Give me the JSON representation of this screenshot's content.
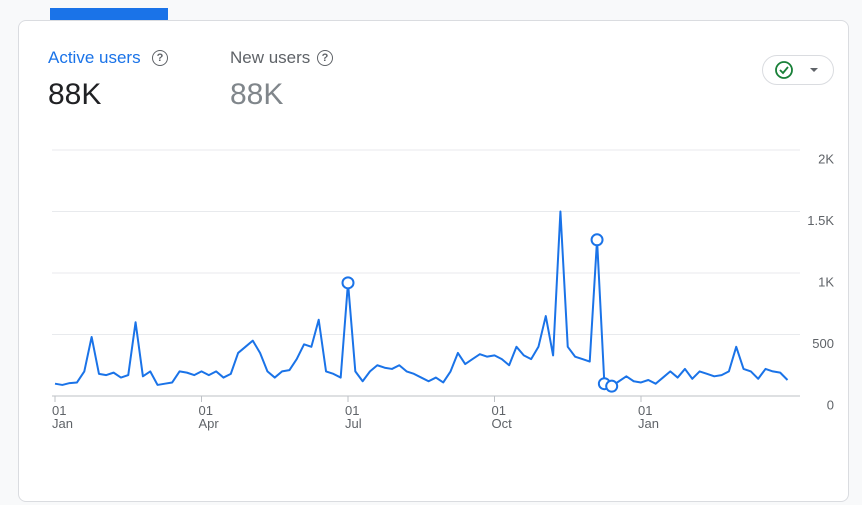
{
  "metrics": [
    {
      "label": "Active users",
      "value": "88K"
    },
    {
      "label": "New users",
      "value": "88K"
    }
  ],
  "chart_data": {
    "type": "line",
    "x": [
      "01 Jan",
      null,
      null,
      null,
      null,
      null,
      null,
      null,
      null,
      null,
      null,
      null,
      null,
      null,
      null,
      null,
      null,
      null,
      null,
      null,
      "01 Apr",
      null,
      null,
      null,
      null,
      null,
      null,
      null,
      null,
      null,
      null,
      null,
      null,
      null,
      null,
      null,
      null,
      null,
      null,
      null,
      "01 Jul",
      null,
      null,
      null,
      null,
      null,
      null,
      null,
      null,
      null,
      null,
      null,
      null,
      null,
      null,
      null,
      null,
      null,
      null,
      null,
      "01 Oct",
      null,
      null,
      null,
      null,
      null,
      null,
      null,
      null,
      null,
      null,
      null,
      null,
      null,
      null,
      null,
      null,
      null,
      null,
      null,
      "01 Jan",
      null,
      null,
      null,
      null,
      null,
      null,
      null,
      null,
      null,
      null,
      null,
      null,
      null,
      null,
      null,
      null,
      null,
      null,
      null,
      null
    ],
    "series": [
      {
        "name": "Active users",
        "color": "#1a73e8",
        "values": [
          100,
          90,
          105,
          110,
          200,
          480,
          180,
          170,
          190,
          150,
          170,
          600,
          160,
          200,
          90,
          100,
          110,
          200,
          190,
          170,
          200,
          170,
          200,
          150,
          180,
          350,
          400,
          450,
          350,
          200,
          150,
          200,
          210,
          300,
          420,
          400,
          620,
          200,
          180,
          150,
          920,
          200,
          120,
          200,
          250,
          230,
          220,
          250,
          200,
          180,
          150,
          120,
          150,
          110,
          200,
          350,
          260,
          300,
          340,
          320,
          330,
          300,
          250,
          400,
          330,
          300,
          400,
          650,
          330,
          1500,
          400,
          320,
          300,
          280,
          1270,
          100,
          80,
          120,
          160,
          120,
          110,
          130,
          100,
          150,
          200,
          150,
          220,
          140,
          200,
          180,
          160,
          170,
          200,
          400,
          220,
          200,
          140,
          220,
          200,
          190,
          130
        ],
        "anomalies": [
          null,
          null,
          null,
          null,
          null,
          null,
          null,
          null,
          null,
          null,
          null,
          null,
          null,
          null,
          null,
          null,
          null,
          null,
          null,
          null,
          null,
          null,
          null,
          null,
          null,
          null,
          null,
          null,
          null,
          null,
          null,
          null,
          null,
          null,
          null,
          null,
          null,
          null,
          null,
          null,
          920,
          null,
          null,
          null,
          null,
          null,
          null,
          null,
          null,
          null,
          null,
          null,
          null,
          null,
          null,
          null,
          null,
          null,
          null,
          null,
          null,
          null,
          null,
          null,
          null,
          null,
          null,
          null,
          null,
          null,
          null,
          null,
          null,
          null,
          1270,
          100,
          80,
          null,
          null,
          null,
          null,
          null,
          null,
          null,
          null,
          null,
          null,
          null,
          null,
          null,
          null,
          null,
          null,
          null,
          null,
          null,
          null,
          null,
          null,
          null,
          null
        ]
      }
    ],
    "ylim": [
      0,
      2000
    ],
    "yticks": [
      0,
      500,
      {
        "value": 1000,
        "label": "1K"
      },
      {
        "value": 1500,
        "label": "1.5K"
      },
      {
        "value": 2000,
        "label": "2K"
      }
    ],
    "grid": true
  }
}
